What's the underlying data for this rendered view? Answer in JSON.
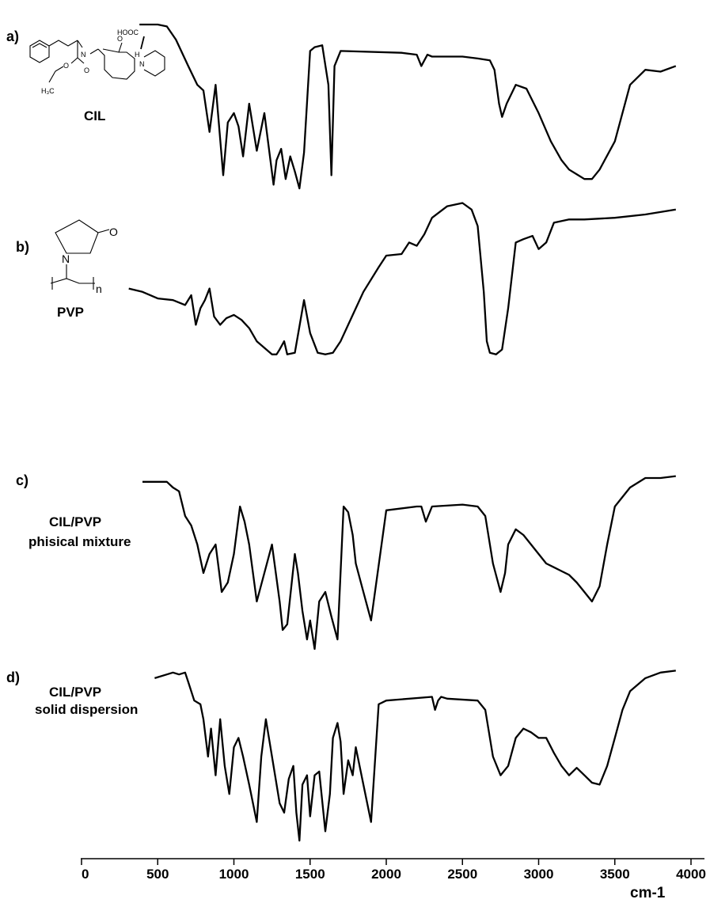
{
  "chart_data": {
    "type": "line",
    "xlabel": "cm-1",
    "xlim": [
      0,
      4000
    ],
    "ticks": [
      0,
      500,
      1000,
      1500,
      2000,
      2500,
      3000,
      3500,
      4000
    ],
    "tick_labels": [
      "0",
      "500",
      "1000",
      "1500",
      "2000",
      "2500",
      "3000",
      "3500",
      "4000"
    ],
    "grid": false,
    "panels": [
      {
        "panel": "a)",
        "label_lines": [
          "CIL"
        ],
        "x": [
          380,
          500,
          560,
          620,
          700,
          760,
          800,
          840,
          880,
          930,
          960,
          1000,
          1030,
          1060,
          1100,
          1150,
          1200,
          1260,
          1280,
          1310,
          1340,
          1370,
          1400,
          1430,
          1460,
          1500,
          1530,
          1580,
          1620,
          1640,
          1660,
          1700,
          2100,
          2200,
          2230,
          2250,
          2270,
          2300,
          2500,
          2600,
          2680,
          2710,
          2740,
          2760,
          2790,
          2850,
          2920,
          3000,
          3080,
          3150,
          3200,
          3260,
          3300,
          3350,
          3400,
          3500,
          3600,
          3700,
          3800,
          3900
        ],
        "y": [
          92,
          92,
          91,
          84,
          70,
          60,
          57,
          35,
          60,
          12,
          40,
          45,
          38,
          22,
          50,
          25,
          45,
          7,
          20,
          26,
          10,
          22,
          14,
          5,
          24,
          78,
          80,
          81,
          60,
          12,
          70,
          78,
          77,
          76,
          70,
          73,
          76,
          75,
          75,
          74,
          73,
          68,
          50,
          43,
          50,
          60,
          58,
          45,
          30,
          20,
          15,
          12,
          10,
          10,
          15,
          30,
          60,
          68,
          67,
          70
        ]
      },
      {
        "panel": "b)",
        "label_lines": [
          "PVP"
        ],
        "x": [
          310,
          400,
          500,
          600,
          680,
          720,
          750,
          780,
          810,
          840,
          870,
          910,
          950,
          1000,
          1050,
          1100,
          1150,
          1200,
          1250,
          1280,
          1300,
          1330,
          1350,
          1400,
          1460,
          1500,
          1550,
          1600,
          1650,
          1700,
          1750,
          1850,
          1950,
          2000,
          2100,
          2150,
          2200,
          2250,
          2300,
          2400,
          2500,
          2560,
          2600,
          2640,
          2660,
          2680,
          2720,
          2760,
          2800,
          2850,
          2900,
          2960,
          3000,
          3050,
          3100,
          3200,
          3300,
          3500,
          3700,
          3900
        ],
        "y": [
          42,
          40,
          36,
          35,
          32,
          38,
          20,
          30,
          35,
          42,
          25,
          20,
          24,
          26,
          23,
          18,
          10,
          6,
          2,
          2,
          5,
          10,
          2,
          3,
          35,
          15,
          3,
          2,
          3,
          10,
          20,
          40,
          55,
          62,
          63,
          70,
          68,
          75,
          85,
          92,
          94,
          90,
          80,
          40,
          10,
          3,
          2,
          5,
          30,
          70,
          72,
          74,
          66,
          70,
          82,
          84,
          84,
          85,
          87,
          90
        ]
      },
      {
        "panel": "c)",
        "label_lines": [
          "CIL/PVP",
          "phisical mixture"
        ],
        "x": [
          400,
          500,
          560,
          600,
          640,
          680,
          720,
          760,
          800,
          840,
          880,
          920,
          960,
          1000,
          1040,
          1070,
          1100,
          1150,
          1200,
          1250,
          1300,
          1320,
          1350,
          1380,
          1400,
          1420,
          1450,
          1480,
          1500,
          1530,
          1560,
          1600,
          1640,
          1680,
          1720,
          1750,
          1780,
          1800,
          1850,
          1900,
          2000,
          2200,
          2230,
          2260,
          2300,
          2500,
          2600,
          2650,
          2700,
          2750,
          2780,
          2800,
          2850,
          2900,
          2950,
          3000,
          3050,
          3100,
          3150,
          3200,
          3250,
          3300,
          3350,
          3400,
          3450,
          3500,
          3550,
          3600,
          3700,
          3800,
          3900
        ],
        "y": [
          93,
          93,
          93,
          90,
          88,
          75,
          70,
          60,
          45,
          55,
          60,
          35,
          40,
          55,
          80,
          72,
          60,
          30,
          45,
          60,
          30,
          15,
          18,
          40,
          55,
          45,
          25,
          10,
          20,
          5,
          30,
          35,
          22,
          10,
          80,
          77,
          65,
          50,
          35,
          20,
          78,
          80,
          80,
          72,
          80,
          81,
          80,
          75,
          50,
          35,
          45,
          60,
          68,
          65,
          60,
          55,
          50,
          48,
          46,
          44,
          40,
          35,
          30,
          38,
          60,
          80,
          85,
          90,
          95,
          95,
          96
        ]
      },
      {
        "panel": "d)",
        "label_lines": [
          "CIL/PVP",
          "solid dispersion"
        ],
        "x": [
          480,
          560,
          600,
          640,
          680,
          700,
          740,
          780,
          800,
          830,
          850,
          880,
          910,
          940,
          970,
          1000,
          1030,
          1060,
          1100,
          1150,
          1180,
          1210,
          1240,
          1270,
          1300,
          1330,
          1360,
          1390,
          1410,
          1430,
          1450,
          1480,
          1500,
          1530,
          1560,
          1600,
          1630,
          1650,
          1680,
          1700,
          1720,
          1750,
          1780,
          1800,
          1850,
          1900,
          1950,
          2000,
          2300,
          2320,
          2340,
          2360,
          2400,
          2600,
          2650,
          2700,
          2750,
          2800,
          2850,
          2900,
          2950,
          3000,
          3050,
          3100,
          3150,
          3200,
          3250,
          3300,
          3350,
          3400,
          3450,
          3500,
          3550,
          3600,
          3700,
          3800,
          3900
        ],
        "y": [
          92,
          94,
          95,
          94,
          95,
          90,
          80,
          78,
          70,
          50,
          65,
          40,
          70,
          45,
          30,
          55,
          60,
          50,
          35,
          15,
          50,
          70,
          55,
          40,
          25,
          20,
          38,
          45,
          20,
          5,
          35,
          40,
          18,
          40,
          42,
          10,
          30,
          60,
          68,
          58,
          30,
          48,
          40,
          55,
          35,
          15,
          78,
          80,
          82,
          75,
          80,
          82,
          81,
          80,
          75,
          50,
          40,
          45,
          60,
          65,
          63,
          60,
          60,
          52,
          45,
          40,
          44,
          40,
          36,
          35,
          45,
          60,
          75,
          85,
          92,
          95,
          96
        ]
      }
    ]
  }
}
